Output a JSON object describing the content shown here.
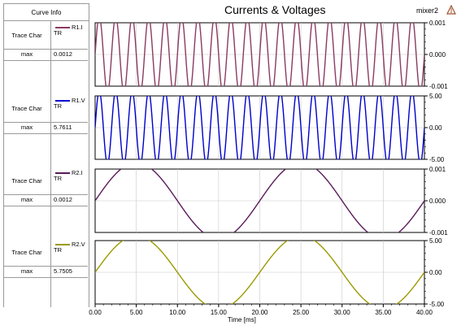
{
  "title": "Currents & Voltages",
  "file_label": "mixer2",
  "curve_info": {
    "header": "Curve Info",
    "rows": [
      {
        "trace_char_label": "Trace Char",
        "legend": "R1.I",
        "tr": "TR",
        "max_label": "max",
        "max_value": "0.0012"
      },
      {
        "trace_char_label": "Trace Char",
        "legend": "R1.V",
        "tr": "TR",
        "max_label": "max",
        "max_value": "5.7611"
      },
      {
        "trace_char_label": "Trace Char",
        "legend": "R2.I",
        "tr": "TR",
        "max_label": "max",
        "max_value": "0.0012"
      },
      {
        "trace_char_label": "Trace Char",
        "legend": "R2.V",
        "tr": "TR",
        "max_label": "max",
        "max_value": "5.7505"
      }
    ]
  },
  "colors": {
    "r1i": "#8b3a62",
    "r1v": "#0000cc",
    "r2i": "#5a1a5a",
    "r2v": "#9a9a00",
    "axis": "#000000",
    "grid": "#c8c8c8"
  },
  "chart_data": [
    {
      "type": "line",
      "series": [
        {
          "name": "R1.I"
        }
      ],
      "x_unit": "ms",
      "xlim": [
        0,
        40
      ],
      "ylim": [
        -0.001,
        0.001
      ],
      "ytick_labels": [
        "0.001",
        "0.000",
        "-0.001"
      ],
      "amplitude": 0.0012,
      "frequency_khz": 0.5,
      "offset": 0,
      "phase_deg": 0
    },
    {
      "type": "line",
      "series": [
        {
          "name": "R1.V"
        }
      ],
      "x_unit": "ms",
      "xlim": [
        0,
        40
      ],
      "ylim": [
        -5.0,
        5.0
      ],
      "ytick_labels": [
        "5.00",
        "0.00",
        "-5.00"
      ],
      "amplitude": 5.7611,
      "frequency_khz": 0.5,
      "offset": 0,
      "phase_deg": 0
    },
    {
      "type": "line",
      "series": [
        {
          "name": "R2.I"
        }
      ],
      "x_unit": "ms",
      "xlim": [
        0,
        40
      ],
      "ylim": [
        -0.001,
        0.001
      ],
      "ytick_labels": [
        "0.001",
        "0.000",
        "-0.001"
      ],
      "amplitude": 0.0012,
      "frequency_khz": 0.05,
      "offset": 0,
      "phase_deg": 0
    },
    {
      "type": "line",
      "series": [
        {
          "name": "R2.V"
        }
      ],
      "x_unit": "ms",
      "xlim": [
        0,
        40
      ],
      "ylim": [
        -5.0,
        5.0
      ],
      "ytick_labels": [
        "5.00",
        "0.00",
        "-5.00"
      ],
      "amplitude": 5.7505,
      "frequency_khz": 0.05,
      "offset": 0,
      "phase_deg": 0
    }
  ],
  "x_axis": {
    "label": "Time [ms]",
    "tick_labels": [
      "0.00",
      "5.00",
      "10.00",
      "15.00",
      "20.00",
      "25.00",
      "30.00",
      "35.00",
      "40.00"
    ]
  },
  "grid": true
}
